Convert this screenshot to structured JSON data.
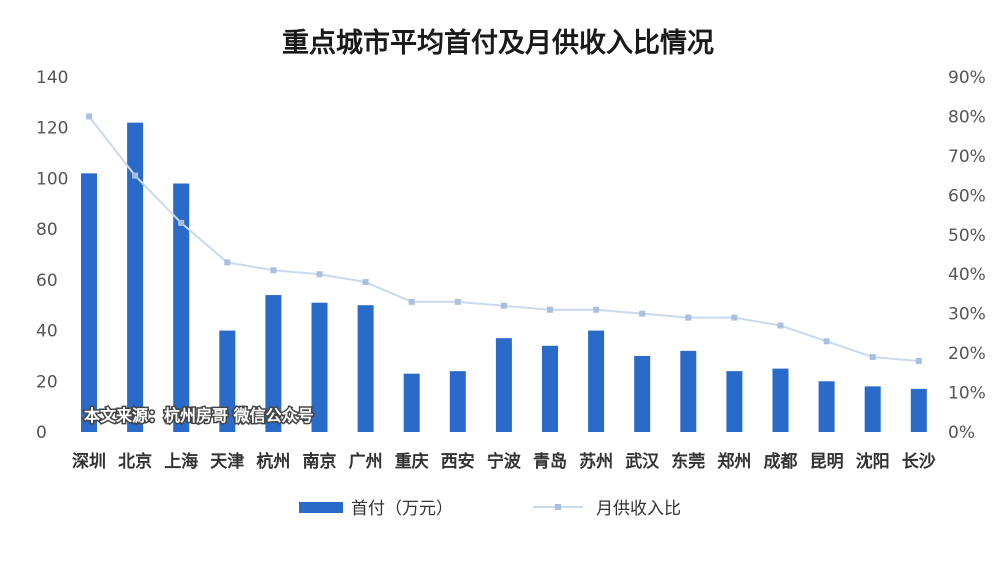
{
  "chart_data": {
    "type": "bar",
    "title": "重点城市平均首付及月供收入比情况",
    "categories": [
      "深圳",
      "北京",
      "上海",
      "天津",
      "杭州",
      "南京",
      "广州",
      "重庆",
      "西安",
      "宁波",
      "青岛",
      "苏州",
      "武汉",
      "东莞",
      "郑州",
      "成都",
      "昆明",
      "沈阳",
      "长沙"
    ],
    "series": [
      {
        "name": "首付（万元）",
        "type": "bar",
        "axis": "left",
        "color": "#2a6bc9",
        "values": [
          102,
          122,
          98,
          40,
          54,
          51,
          50,
          23,
          24,
          37,
          34,
          40,
          30,
          32,
          24,
          25,
          20,
          18,
          17
        ]
      },
      {
        "name": "月供收入比",
        "type": "line",
        "axis": "right",
        "color": "#c9d9ee",
        "marker_color": "#a9bfdf",
        "values": [
          0.8,
          0.65,
          0.53,
          0.43,
          0.41,
          0.4,
          0.38,
          0.33,
          0.33,
          0.32,
          0.31,
          0.31,
          0.3,
          0.29,
          0.29,
          0.27,
          0.23,
          0.19,
          0.18
        ]
      }
    ],
    "y_left": {
      "min": 0,
      "max": 140,
      "ticks": [
        "0",
        "20",
        "40",
        "60",
        "80",
        "100",
        "120",
        "140"
      ]
    },
    "y_right": {
      "min": 0,
      "max": 0.9,
      "ticks": [
        "0%",
        "10%",
        "20%",
        "30%",
        "40%",
        "50%",
        "60%",
        "70%",
        "80%",
        "90%"
      ]
    },
    "grid": false,
    "legend_position": "bottom"
  },
  "watermark": "本文来源：杭州房哥 微信公众号"
}
